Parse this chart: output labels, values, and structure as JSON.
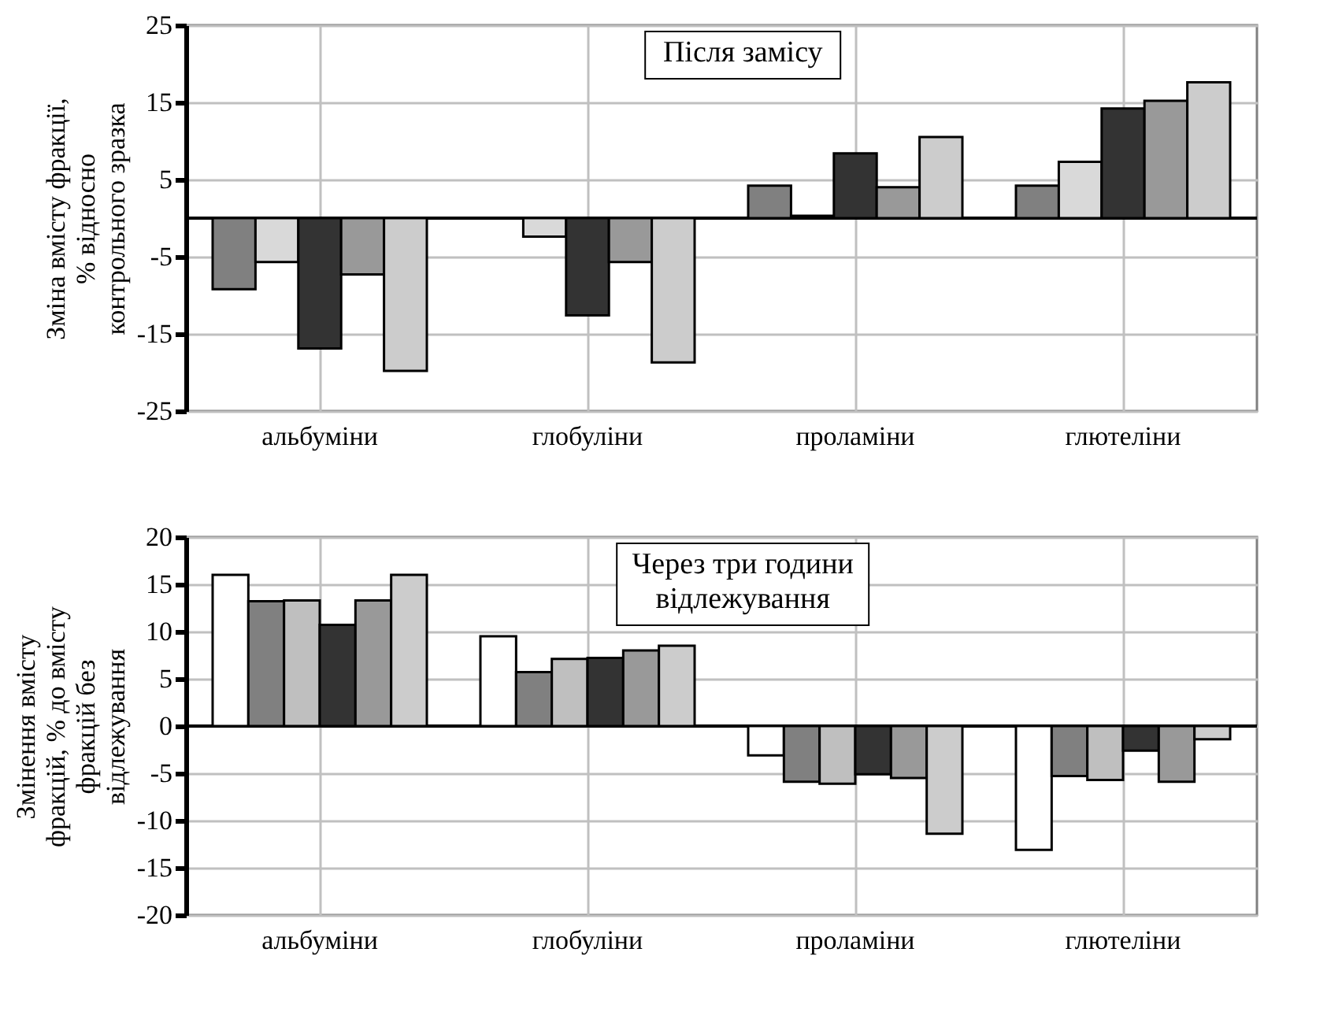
{
  "chart_data": [
    {
      "type": "bar",
      "annotations": [
        "Після замісу"
      ],
      "ylabel": "Зміна вмісту фракції,\n% відносно\nконтрольного зразка",
      "categories": [
        "альбуміни",
        "глобуліни",
        "проламіни",
        "глютеліни"
      ],
      "series": [
        {
          "color": "#808080",
          "values": [
            -9.2,
            null,
            4.2,
            4.2
          ]
        },
        {
          "color": "#d9d9d9",
          "values": [
            -5.7,
            -2.4,
            0.3,
            7.3
          ]
        },
        {
          "color": "#333333",
          "values": [
            -16.9,
            -12.6,
            8.4,
            14.2
          ]
        },
        {
          "color": "#999999",
          "values": [
            -7.3,
            -5.7,
            4.0,
            15.2
          ]
        },
        {
          "color": "#cccccc",
          "values": [
            -19.8,
            -18.7,
            10.5,
            17.6
          ]
        }
      ],
      "ylim": [
        -25,
        25
      ],
      "yticks": [
        -25,
        -15,
        -5,
        5,
        15,
        25
      ],
      "grid": true,
      "legend": false
    },
    {
      "type": "bar",
      "annotations": [
        "Через три години\nвідлежування"
      ],
      "ylabel": "Змінення вмісту\nфракцій, % до вмісту\nфракцій без\nвідлежування",
      "categories": [
        "альбуміни",
        "глобуліни",
        "проламіни",
        "глютеліни"
      ],
      "series": [
        {
          "color": "#ffffff",
          "values": [
            16.0,
            9.5,
            -3.1,
            -13.1
          ]
        },
        {
          "color": "#808080",
          "values": [
            13.2,
            5.7,
            -5.9,
            -5.3
          ]
        },
        {
          "color": "#bfbfbf",
          "values": [
            13.3,
            7.1,
            -6.1,
            -5.7
          ]
        },
        {
          "color": "#333333",
          "values": [
            10.7,
            7.2,
            -5.1,
            -2.6
          ]
        },
        {
          "color": "#999999",
          "values": [
            13.3,
            8.0,
            -5.5,
            -5.9
          ]
        },
        {
          "color": "#cccccc",
          "values": [
            16.0,
            8.5,
            -11.4,
            -1.4
          ]
        }
      ],
      "ylim": [
        -20,
        20
      ],
      "yticks": [
        -20,
        -15,
        -10,
        -5,
        0,
        5,
        10,
        15,
        20
      ],
      "grid": true,
      "legend": false
    }
  ]
}
